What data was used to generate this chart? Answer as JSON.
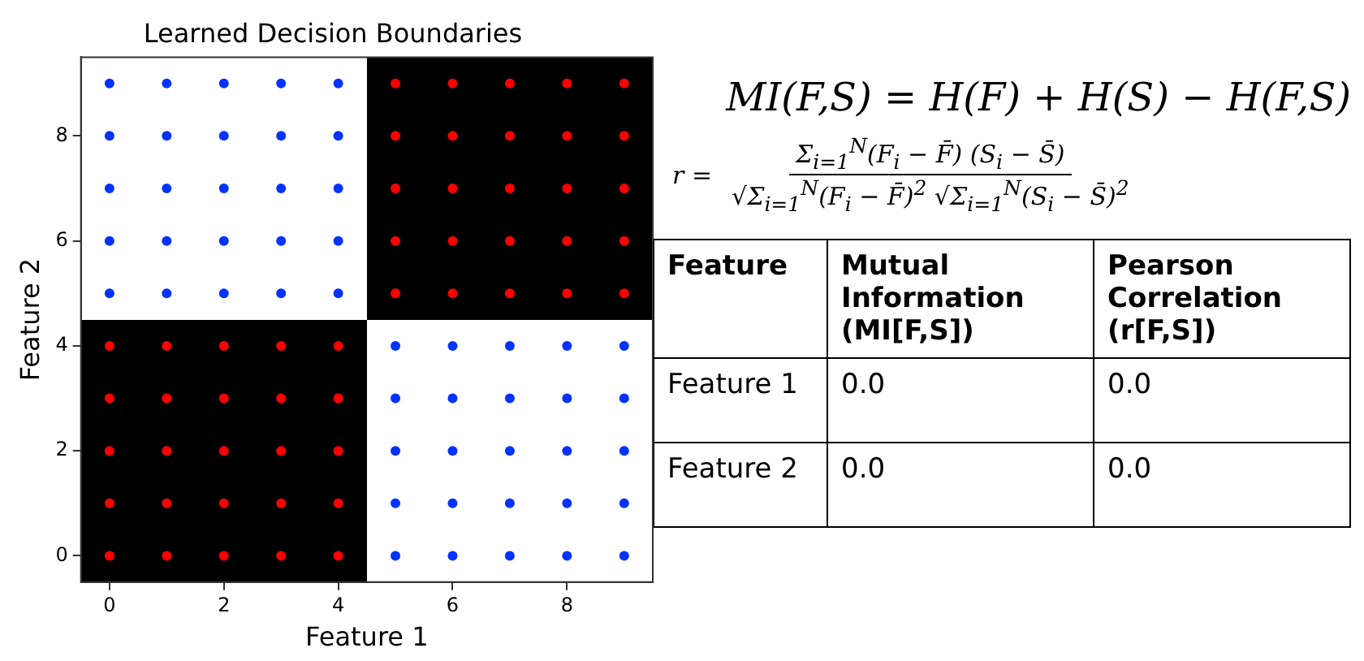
{
  "chart_data": [
    {
      "type": "scatter",
      "title": "Learned Decision Boundaries",
      "xlabel": "Feature 1",
      "ylabel": "Feature 2",
      "xlim": [
        -0.5,
        9.5
      ],
      "ylim": [
        -0.5,
        9.5
      ],
      "xticks": [
        0,
        2,
        4,
        6,
        8
      ],
      "yticks": [
        0,
        2,
        4,
        6,
        8
      ],
      "grid": false,
      "legend": false,
      "marker": "circle",
      "series": [
        {
          "color": "#ff0000",
          "x": [
            0,
            1,
            2,
            3,
            4,
            0,
            1,
            2,
            3,
            4,
            0,
            1,
            2,
            3,
            4,
            0,
            1,
            2,
            3,
            4,
            0,
            1,
            2,
            3,
            4,
            5,
            6,
            7,
            8,
            9,
            5,
            6,
            7,
            8,
            9,
            5,
            6,
            7,
            8,
            9,
            5,
            6,
            7,
            8,
            9,
            5,
            6,
            7,
            8,
            9
          ],
          "values": [
            0,
            0,
            0,
            0,
            0,
            1,
            1,
            1,
            1,
            1,
            2,
            2,
            2,
            2,
            2,
            3,
            3,
            3,
            3,
            3,
            4,
            4,
            4,
            4,
            4,
            5,
            5,
            5,
            5,
            5,
            6,
            6,
            6,
            6,
            6,
            7,
            7,
            7,
            7,
            7,
            8,
            8,
            8,
            8,
            8,
            9,
            9,
            9,
            9,
            9
          ]
        },
        {
          "color": "#0033ff",
          "x": [
            0,
            1,
            2,
            3,
            4,
            0,
            1,
            2,
            3,
            4,
            0,
            1,
            2,
            3,
            4,
            0,
            1,
            2,
            3,
            4,
            0,
            1,
            2,
            3,
            4,
            5,
            6,
            7,
            8,
            9,
            5,
            6,
            7,
            8,
            9,
            5,
            6,
            7,
            8,
            9,
            5,
            6,
            7,
            8,
            9,
            5,
            6,
            7,
            8,
            9
          ],
          "values": [
            5,
            5,
            5,
            5,
            5,
            6,
            6,
            6,
            6,
            6,
            7,
            7,
            7,
            7,
            7,
            8,
            8,
            8,
            8,
            8,
            9,
            9,
            9,
            9,
            9,
            0,
            0,
            0,
            0,
            0,
            1,
            1,
            1,
            1,
            1,
            2,
            2,
            2,
            2,
            2,
            3,
            3,
            3,
            3,
            3,
            4,
            4,
            4,
            4,
            4
          ]
        }
      ]
    },
    {
      "type": "other",
      "xlabel": "Feature",
      "annotations": [
        "MI(F,S) = H(F) + H(S) − H(F,S)",
        "r =",
        "Σ$_{i=1}$$^{N}$(F$_{i}$ − F̄) (S$_{i}$ − S̄)",
        "√Σ$_{i=1}$$^{N}$(F$_{i}$ − F̄)$^{2}$  √Σ$_{i=1}$$^{N}$(S$_{i}$ − S̄)$^{2}$"
      ],
      "categories": [
        "Feature 1",
        "Feature 2"
      ],
      "series": [
        {
          "name": "Mutual Information (MI[F,S])",
          "values": [
            0.0,
            0.0
          ],
          "value_labels": [
            "0.0",
            "0.0"
          ]
        },
        {
          "name": "Pearson Correlation (r[F,S])",
          "values": [
            0.0,
            0.0
          ],
          "value_labels": [
            "0.0",
            "0.0"
          ]
        }
      ]
    }
  ]
}
